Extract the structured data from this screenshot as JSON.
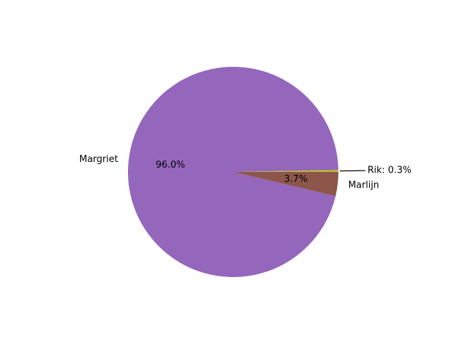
{
  "chart_data": {
    "type": "pie",
    "title": "",
    "start_angle_deg": 0,
    "direction": "counterclockwise",
    "slices": [
      {
        "label": "Rik",
        "value": 0.3,
        "pct_label": "",
        "callout_label": "Rik: 0.3%",
        "color": "#bcbd22"
      },
      {
        "label": "Margriet",
        "value": 96.0,
        "pct_label": "96.0%",
        "callout_label": "",
        "color": "#9467bd"
      },
      {
        "label": "Marlijn",
        "value": 3.7,
        "pct_label": "3.7%",
        "callout_label": "",
        "color": "#8c564b"
      }
    ]
  }
}
